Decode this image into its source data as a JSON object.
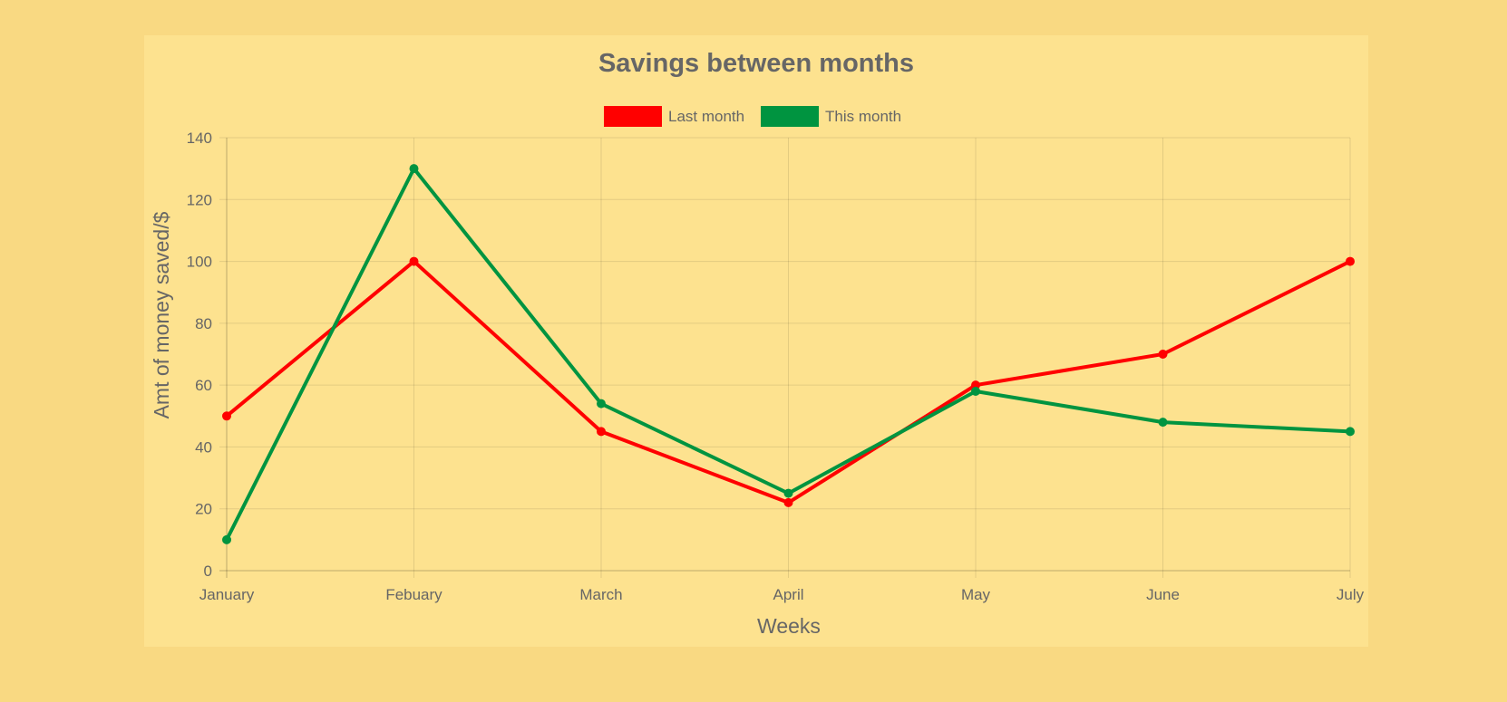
{
  "chart_data": {
    "type": "line",
    "title": "Savings between months",
    "xlabel": "Weeks",
    "ylabel": "Amt of money saved/$",
    "categories": [
      "January",
      "Febuary",
      "March",
      "April",
      "May",
      "June",
      "July"
    ],
    "ylim": [
      0,
      140
    ],
    "yticks": [
      0,
      20,
      40,
      60,
      80,
      100,
      120,
      140
    ],
    "grid": true,
    "legend_position": "top",
    "series": [
      {
        "name": "Last month",
        "color": "#ff0000",
        "values": [
          50,
          100,
          45,
          22,
          60,
          70,
          100
        ]
      },
      {
        "name": "This month",
        "color": "#009440",
        "values": [
          10,
          130,
          54,
          25,
          58,
          48,
          45
        ]
      }
    ]
  },
  "colors": {
    "page_background": "#f9d982",
    "chart_background": "#fde28f",
    "text": "#666666"
  }
}
